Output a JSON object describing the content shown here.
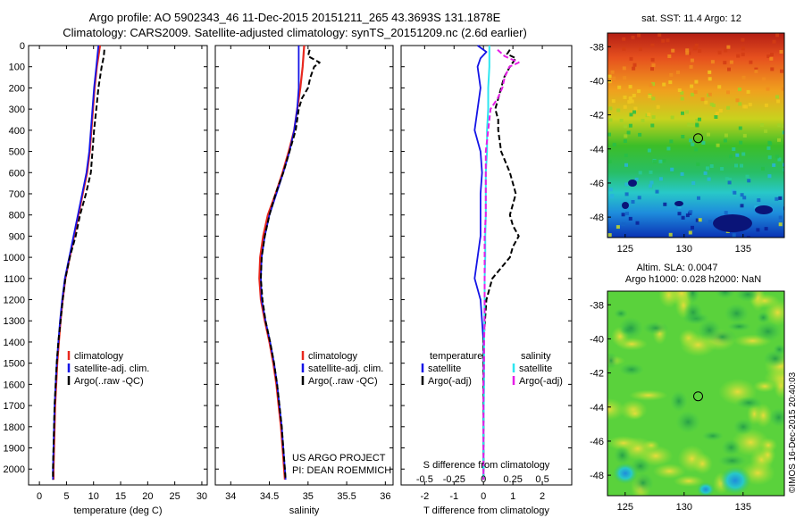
{
  "header": {
    "line1": "Argo profile: AO 5902343_46 11-Dec-2015 20151211_265 43.3693S 131.1878E",
    "line2": "Climatology: CARS2009. Satellite-adjusted climatology: synTS_20151209.nc (2.6d earlier)"
  },
  "colors": {
    "climatology": "#e8281e",
    "satellite": "#1414e6",
    "argo": "#000000",
    "sal_satellite": "#2ee6f0",
    "sal_argo": "#e61ee6"
  },
  "chart_data": [
    {
      "type": "line",
      "name": "temperature-profile",
      "xlabel": "temperature (deg C)",
      "ylabel": "",
      "xlim": [
        -2,
        31
      ],
      "ylim": [
        2075,
        0
      ],
      "xticks": [
        "0",
        "5",
        "10",
        "15",
        "20",
        "25",
        "30"
      ],
      "yticks": [
        "0",
        "100",
        "200",
        "300",
        "400",
        "500",
        "600",
        "700",
        "800",
        "900",
        "1000",
        "1100",
        "1200",
        "1300",
        "1400",
        "1500",
        "1600",
        "1700",
        "1800",
        "1900",
        "2000"
      ],
      "legend": [
        "climatology",
        "satellite-adj. clim.",
        "Argo(..raw -QC)"
      ],
      "series": [
        {
          "name": "climatology",
          "depth": [
            0,
            50,
            100,
            200,
            300,
            400,
            500,
            600,
            700,
            800,
            900,
            1000,
            1100,
            1200,
            1300,
            1400,
            1500,
            1600,
            1700,
            1800,
            1900,
            2000,
            2050
          ],
          "values": [
            11.2,
            10.9,
            10.6,
            10.2,
            9.9,
            9.6,
            9.3,
            8.8,
            8.0,
            7.2,
            6.4,
            5.6,
            4.8,
            4.3,
            3.9,
            3.6,
            3.3,
            3.1,
            2.9,
            2.8,
            2.7,
            2.6,
            2.6
          ]
        },
        {
          "name": "satellite-adj. clim.",
          "depth": [
            0,
            50,
            100,
            200,
            300,
            400,
            500,
            600,
            700,
            800,
            900,
            1000,
            1100,
            1200,
            1300,
            1400,
            1500,
            1600,
            1700,
            1800,
            1900,
            2000,
            2050
          ],
          "values": [
            10.9,
            10.7,
            10.5,
            10.1,
            9.8,
            9.5,
            9.2,
            8.7,
            7.9,
            7.1,
            6.3,
            5.5,
            4.7,
            4.2,
            3.8,
            3.5,
            3.2,
            3.0,
            2.8,
            2.7,
            2.6,
            2.5,
            2.5
          ]
        },
        {
          "name": "Argo(..raw -QC)",
          "depth": [
            20,
            50,
            100,
            150,
            200,
            300,
            400,
            500,
            600,
            700,
            800,
            900,
            1000,
            1100,
            1200,
            1300,
            1400,
            1500,
            1600,
            1700,
            1800,
            1900,
            2000,
            2050
          ],
          "values": [
            12.0,
            11.9,
            11.5,
            11.2,
            10.9,
            10.5,
            10.1,
            9.8,
            9.5,
            8.6,
            7.5,
            6.7,
            5.6,
            4.8,
            4.3,
            3.9,
            3.5,
            3.2,
            3.0,
            2.8,
            2.7,
            2.6,
            2.5,
            2.5
          ]
        }
      ]
    },
    {
      "type": "line",
      "name": "salinity-profile",
      "xlabel": "salinity",
      "xlim": [
        33.8,
        36.1
      ],
      "ylim": [
        2075,
        0
      ],
      "xticks": [
        "34",
        "34.5",
        "35",
        "35.5",
        "36"
      ],
      "legend": [
        "climatology",
        "satellite-adj. clim.",
        "Argo(..raw -QC)"
      ],
      "series": [
        {
          "name": "climatology",
          "depth": [
            0,
            100,
            200,
            300,
            400,
            500,
            600,
            700,
            800,
            900,
            1000,
            1100,
            1200,
            1300,
            1400,
            1500,
            1600,
            1700,
            1800,
            1900,
            2000,
            2050
          ],
          "values": [
            34.95,
            34.93,
            34.9,
            34.86,
            34.82,
            34.75,
            34.67,
            34.58,
            34.48,
            34.42,
            34.38,
            34.37,
            34.39,
            34.44,
            34.5,
            34.55,
            34.59,
            34.62,
            34.65,
            34.67,
            34.69,
            34.7
          ]
        },
        {
          "name": "satellite-adj. clim.",
          "depth": [
            0,
            100,
            200,
            300,
            400,
            500,
            600,
            700,
            800,
            900,
            1000,
            1100,
            1200,
            1300,
            1400,
            1500,
            1600,
            1700,
            1800,
            1900,
            2000,
            2050
          ],
          "values": [
            34.88,
            34.88,
            34.88,
            34.86,
            34.82,
            34.76,
            34.68,
            34.59,
            34.5,
            34.44,
            34.4,
            34.39,
            34.4,
            34.45,
            34.51,
            34.56,
            34.6,
            34.63,
            34.66,
            34.68,
            34.7,
            34.71
          ]
        },
        {
          "name": "Argo(..raw -QC)",
          "depth": [
            20,
            50,
            80,
            100,
            150,
            200,
            250,
            300,
            400,
            500,
            600,
            700,
            800,
            900,
            1000,
            1100,
            1200,
            1300,
            1400,
            1500,
            1600,
            1700,
            1800,
            1900,
            2000,
            2050
          ],
          "values": [
            35.02,
            35.0,
            35.15,
            35.08,
            35.03,
            35.0,
            34.92,
            34.88,
            34.84,
            34.76,
            34.68,
            34.58,
            34.5,
            34.44,
            34.4,
            34.39,
            34.41,
            34.45,
            34.51,
            34.56,
            34.6,
            34.63,
            34.66,
            34.68,
            34.7,
            34.71
          ]
        }
      ],
      "annotation": [
        "US ARGO PROJECT",
        "PI: DEAN ROEMMICH"
      ]
    },
    {
      "type": "line",
      "name": "difference-profile",
      "xlabel": "T difference from climatology",
      "top_label": "S difference from climatology",
      "xlim": [
        -2.8,
        3.0
      ],
      "ylim": [
        2075,
        0
      ],
      "xticks": [
        "-2",
        "-1",
        "0",
        "1",
        "2"
      ],
      "top_xticks": [
        "-0.5",
        "-0.25",
        "0",
        "0.25",
        "0.5"
      ],
      "legend_temperature": [
        "temperature",
        "satellite",
        "Argo(-adj)"
      ],
      "legend_salinity": [
        "salinity",
        "satellite",
        "Argo(-adj)"
      ],
      "series": [
        {
          "name": "temperature satellite",
          "depth": [
            0,
            30,
            60,
            100,
            200,
            300,
            400,
            500,
            600,
            700,
            800,
            900,
            1000,
            1100,
            1200,
            1300,
            1400,
            1500,
            1600,
            1800,
            2000,
            2050
          ],
          "values": [
            -0.2,
            0.1,
            -0.1,
            -0.2,
            -0.1,
            -0.2,
            -0.3,
            -0.1,
            -0.05,
            -0.1,
            -0.1,
            -0.1,
            -0.2,
            -0.3,
            -0.1,
            -0.05,
            0,
            0,
            0,
            0,
            0,
            0
          ]
        },
        {
          "name": "temperature Argo(-adj)",
          "depth": [
            20,
            40,
            60,
            100,
            150,
            200,
            250,
            300,
            350,
            400,
            500,
            600,
            700,
            750,
            800,
            850,
            900,
            950,
            1000,
            1100,
            1200,
            1300,
            1400,
            1500,
            1600,
            1800,
            2000,
            2050
          ],
          "values": [
            0.9,
            0.8,
            1.1,
            0.9,
            0.7,
            0.6,
            0.5,
            0.4,
            0.5,
            0.5,
            0.6,
            0.9,
            1.1,
            1.0,
            0.9,
            1.0,
            1.2,
            1.0,
            0.9,
            0.3,
            0.1,
            0.05,
            0,
            0,
            0,
            0,
            0,
            0
          ]
        },
        {
          "name": "salinity satellite",
          "depth": [
            0,
            50,
            100,
            200,
            300,
            400,
            500,
            600,
            700,
            800,
            900,
            1000,
            1100,
            1200,
            1400,
            1600,
            1800,
            2000,
            2050
          ],
          "values": [
            0.05,
            0.05,
            0.05,
            0.04,
            0.04,
            0.03,
            0.03,
            0.02,
            0.02,
            0.02,
            0.015,
            0.015,
            0.01,
            0.01,
            0.005,
            0.005,
            0,
            0,
            0
          ]
        },
        {
          "name": "salinity Argo(-adj)",
          "depth": [
            20,
            50,
            80,
            100,
            150,
            200,
            250,
            300,
            400,
            500,
            600,
            700,
            800,
            900,
            1000,
            1100,
            1200,
            1300,
            1400,
            1500,
            1600,
            1800,
            2000,
            2050
          ],
          "values": [
            0.12,
            0.18,
            0.3,
            0.22,
            0.18,
            0.16,
            0.12,
            0.06,
            0.04,
            0.02,
            0.02,
            0.02,
            0.02,
            0.01,
            0.01,
            0.01,
            0.01,
            0.01,
            0.005,
            0.005,
            0,
            0,
            0,
            0
          ]
        }
      ]
    },
    {
      "type": "heatmap",
      "name": "sst-map",
      "title": "sat. SST: 11.4  Argo: 12",
      "xticks": [
        "125",
        "130",
        "135"
      ],
      "yticks": [
        "-38",
        "-40",
        "-42",
        "-44",
        "-46",
        "-48"
      ],
      "xlim": [
        123.5,
        138.5
      ],
      "ylim": [
        -49.2,
        -37.2
      ],
      "float_position": [
        131.19,
        -43.37
      ]
    },
    {
      "type": "heatmap",
      "name": "sla-map",
      "title_line1": "Altim. SLA: 0.0047",
      "title_line2": "Argo h1000: 0.028 h2000: NaN",
      "xticks": [
        "125",
        "130",
        "135"
      ],
      "yticks": [
        "-38",
        "-40",
        "-42",
        "-44",
        "-46",
        "-48"
      ],
      "xlim": [
        123.5,
        138.5
      ],
      "ylim": [
        -49.2,
        -37.2
      ],
      "float_position": [
        131.19,
        -43.37
      ]
    }
  ],
  "footer_vertical": "©IMOS 16-Dec-2015 20:40:03"
}
